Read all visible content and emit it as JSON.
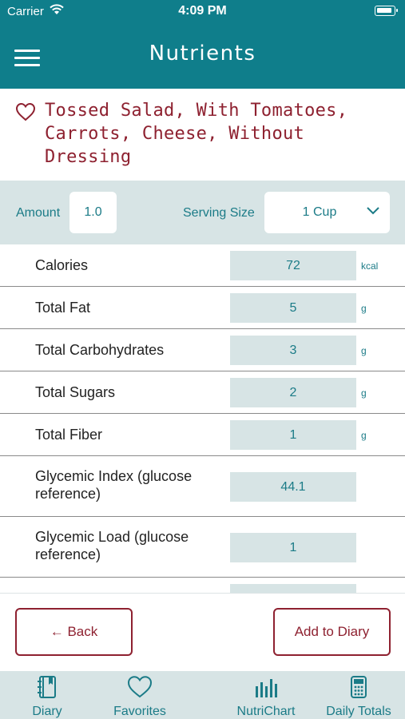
{
  "status_bar": {
    "carrier": "Carrier",
    "time": "4:09 PM"
  },
  "nav": {
    "title": "Nutrients",
    "menu_icon": "hamburger-menu-icon"
  },
  "food": {
    "name": "Tossed Salad, With Tomatoes, Carrots, Cheese, Without Dressing",
    "favorite_icon": "heart-outline-icon"
  },
  "amount": {
    "label": "Amount",
    "value": "1.0"
  },
  "serving": {
    "label": "Serving Size",
    "value": "1 Cup"
  },
  "nutrients": [
    {
      "name": "Calories",
      "value": "72",
      "unit": "kcal"
    },
    {
      "name": "Total Fat",
      "value": "5",
      "unit": "g"
    },
    {
      "name": "Total Carbohydrates",
      "value": "3",
      "unit": "g"
    },
    {
      "name": "Total Sugars",
      "value": "2",
      "unit": "g"
    },
    {
      "name": "Total Fiber",
      "value": "1",
      "unit": "g"
    },
    {
      "name": "Glycemic Index (glucose reference)",
      "value": "44.1",
      "unit": ""
    },
    {
      "name": "Glycemic Load (glucose reference)",
      "value": "1",
      "unit": ""
    },
    {
      "name": "",
      "value": "",
      "unit": ""
    }
  ],
  "actions": {
    "back": "← Back",
    "add_to_diary": "Add to Diary"
  },
  "tabs": [
    {
      "label": "Diary",
      "icon": "journal-icon"
    },
    {
      "label": "Favorites",
      "icon": "heart-outline-icon"
    },
    {
      "label": "NutriChart",
      "icon": "bar-chart-icon"
    },
    {
      "label": "Daily Totals",
      "icon": "calculator-icon"
    }
  ],
  "colors": {
    "primary": "#0f7e8b",
    "accent": "#8e2130",
    "light_teal": "#d7e4e5",
    "text_teal": "#1b7b87"
  }
}
